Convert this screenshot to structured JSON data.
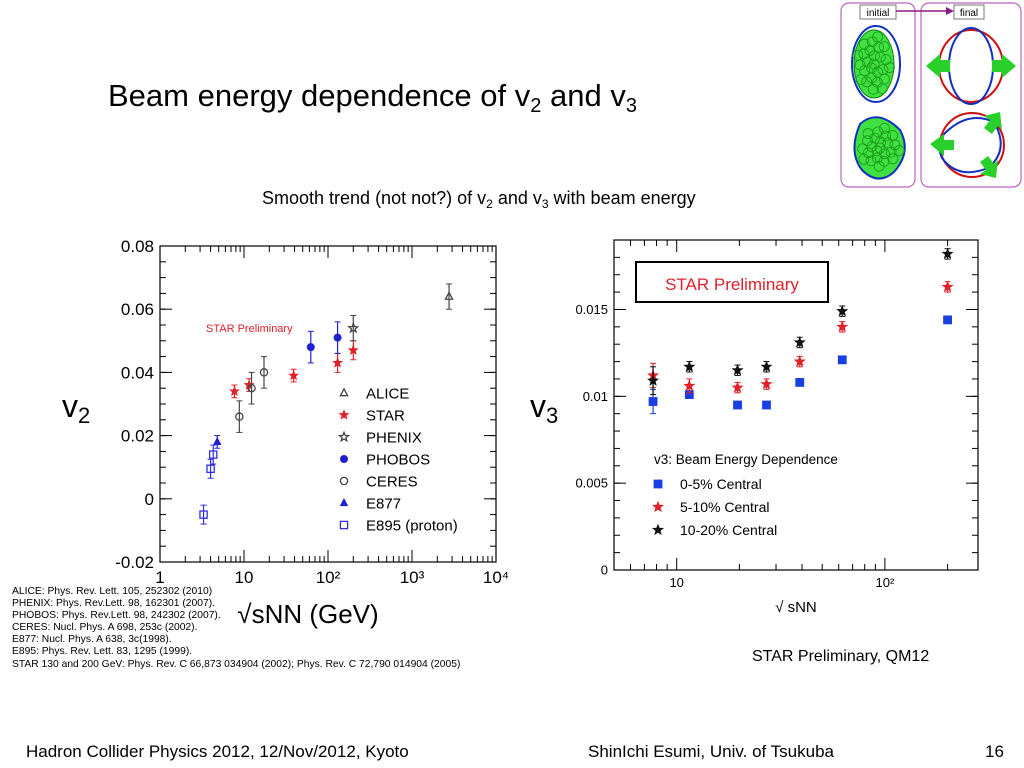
{
  "title": {
    "main": "Beam energy dependence of v",
    "sub1": "2",
    "mid": " and v",
    "sub2": "3"
  },
  "subtitle": {
    "a": "Smooth trend (not not?) of v",
    "s1": "2",
    "b": " and v",
    "s2": "3",
    "c": " with beam energy"
  },
  "inset": {
    "initial_label": "initial",
    "final_label": "final"
  },
  "left_chart_label": {
    "main": "v",
    "sub": "2"
  },
  "right_chart_label": {
    "main": "v",
    "sub": "3"
  },
  "credit": "STAR Preliminary, QM12",
  "footer": {
    "left": "Hadron Collider Physics 2012, 12/Nov/2012, Kyoto",
    "center": "ShinIchi Esumi, Univ. of Tsukuba",
    "page": "16"
  },
  "references": [
    "ALICE: Phys. Rev. Lett. 105, 252302 (2010)",
    "PHENIX: Phys. Rev.Lett. 98, 162301 (2007).",
    "PHOBOS: Phys. Rev.Lett. 98, 242302 (2007).",
    "CERES: Nucl. Phys. A 698, 253c (2002).",
    "E877: Nucl. Phys. A 638, 3c(1998).",
    "E895: Phys. Rev. Lett. 83, 1295 (1999).",
    "STAR 130 and 200 GeV: Phys. Rev. C 66,873 034904 (2002); Phys. Rev. C 72,790 014904 (2005)"
  ],
  "chart_data": [
    {
      "type": "scatter",
      "id": "v2",
      "xscale": "log",
      "xlim": [
        1,
        10000
      ],
      "ylim": [
        -0.02,
        0.08
      ],
      "xticks": [
        "1",
        "10",
        "10²",
        "10³",
        "10⁴"
      ],
      "yticks": [
        "-0.02",
        "0",
        "0.02",
        "0.04",
        "0.06",
        "0.08"
      ],
      "xlabel": "√sNN (GeV)",
      "annotation": "STAR Preliminary",
      "legend_position": "lower-right",
      "series": [
        {
          "name": "ALICE",
          "marker": "triangle-open",
          "color": "#444444",
          "points": [
            [
              2760,
              0.064,
              0.004
            ]
          ]
        },
        {
          "name": "STAR",
          "marker": "star-filled",
          "color": "#e0202a",
          "points": [
            [
              7.7,
              0.034,
              0.002
            ],
            [
              11.5,
              0.036,
              0.002
            ],
            [
              39,
              0.039,
              0.002
            ],
            [
              130,
              0.043,
              0.003
            ],
            [
              200,
              0.047,
              0.003
            ]
          ]
        },
        {
          "name": "PHENIX",
          "marker": "star-open",
          "color": "#444444",
          "points": [
            [
              200,
              0.054,
              0.004
            ]
          ]
        },
        {
          "name": "PHOBOS",
          "marker": "circle-filled",
          "color": "#2020d0",
          "points": [
            [
              62.4,
              0.048,
              0.005
            ],
            [
              130,
              0.051,
              0.005
            ]
          ]
        },
        {
          "name": "CERES",
          "marker": "circle-open",
          "color": "#444444",
          "points": [
            [
              8.8,
              0.026,
              0.005
            ],
            [
              12.3,
              0.035,
              0.005
            ],
            [
              17.3,
              0.04,
              0.005
            ]
          ]
        },
        {
          "name": "E877",
          "marker": "triangle-filled",
          "color": "#2020d0",
          "points": [
            [
              4.8,
              0.018,
              0.002
            ]
          ]
        },
        {
          "name": "E895 (proton)",
          "marker": "square-open",
          "color": "#3030e0",
          "points": [
            [
              3.3,
              -0.005,
              0.003
            ],
            [
              4.0,
              0.0095,
              0.003
            ],
            [
              4.3,
              0.014,
              0.003
            ]
          ]
        }
      ]
    },
    {
      "type": "scatter",
      "id": "v3",
      "xscale": "log",
      "xlim": [
        5,
        280
      ],
      "ylim": [
        0,
        0.019
      ],
      "xticks": [
        "10",
        "10²"
      ],
      "yticks": [
        "0",
        "0.005",
        "0.01",
        "0.015"
      ],
      "xlabel": "√ sNN",
      "annotation": "STAR Preliminary",
      "legend_title": "v3: Beam Energy Dependence",
      "legend_position": "lower-right",
      "series": [
        {
          "name": "0-5% Central",
          "marker": "square-filled",
          "color": "#1a3ee0",
          "points": [
            [
              7.7,
              0.0097,
              0.0007
            ],
            [
              11.5,
              0.0101,
              0.0002
            ],
            [
              19.6,
              0.0095,
              0.0002
            ],
            [
              27,
              0.0095,
              0.0002
            ],
            [
              39,
              0.0108,
              0.0002
            ],
            [
              62.4,
              0.0121,
              0.0002
            ],
            [
              200,
              0.0144,
              0.0002
            ]
          ]
        },
        {
          "name": "5-10% Central",
          "marker": "star-filled",
          "color": "#e0202a",
          "points": [
            [
              7.7,
              0.0112,
              0.0007
            ],
            [
              11.5,
              0.0106,
              0.0004
            ],
            [
              19.6,
              0.0105,
              0.0003
            ],
            [
              27,
              0.0107,
              0.0003
            ],
            [
              39,
              0.012,
              0.0003
            ],
            [
              62.4,
              0.014,
              0.0003
            ],
            [
              200,
              0.0163,
              0.0003
            ]
          ]
        },
        {
          "name": "10-20% Central",
          "marker": "star-filled",
          "color": "#111111",
          "points": [
            [
              7.7,
              0.0109,
              0.0008
            ],
            [
              11.5,
              0.0117,
              0.0003
            ],
            [
              19.6,
              0.0115,
              0.0003
            ],
            [
              27,
              0.0117,
              0.0003
            ],
            [
              39,
              0.0131,
              0.0003
            ],
            [
              62.4,
              0.0149,
              0.0003
            ],
            [
              200,
              0.0182,
              0.0003
            ]
          ]
        }
      ]
    }
  ]
}
